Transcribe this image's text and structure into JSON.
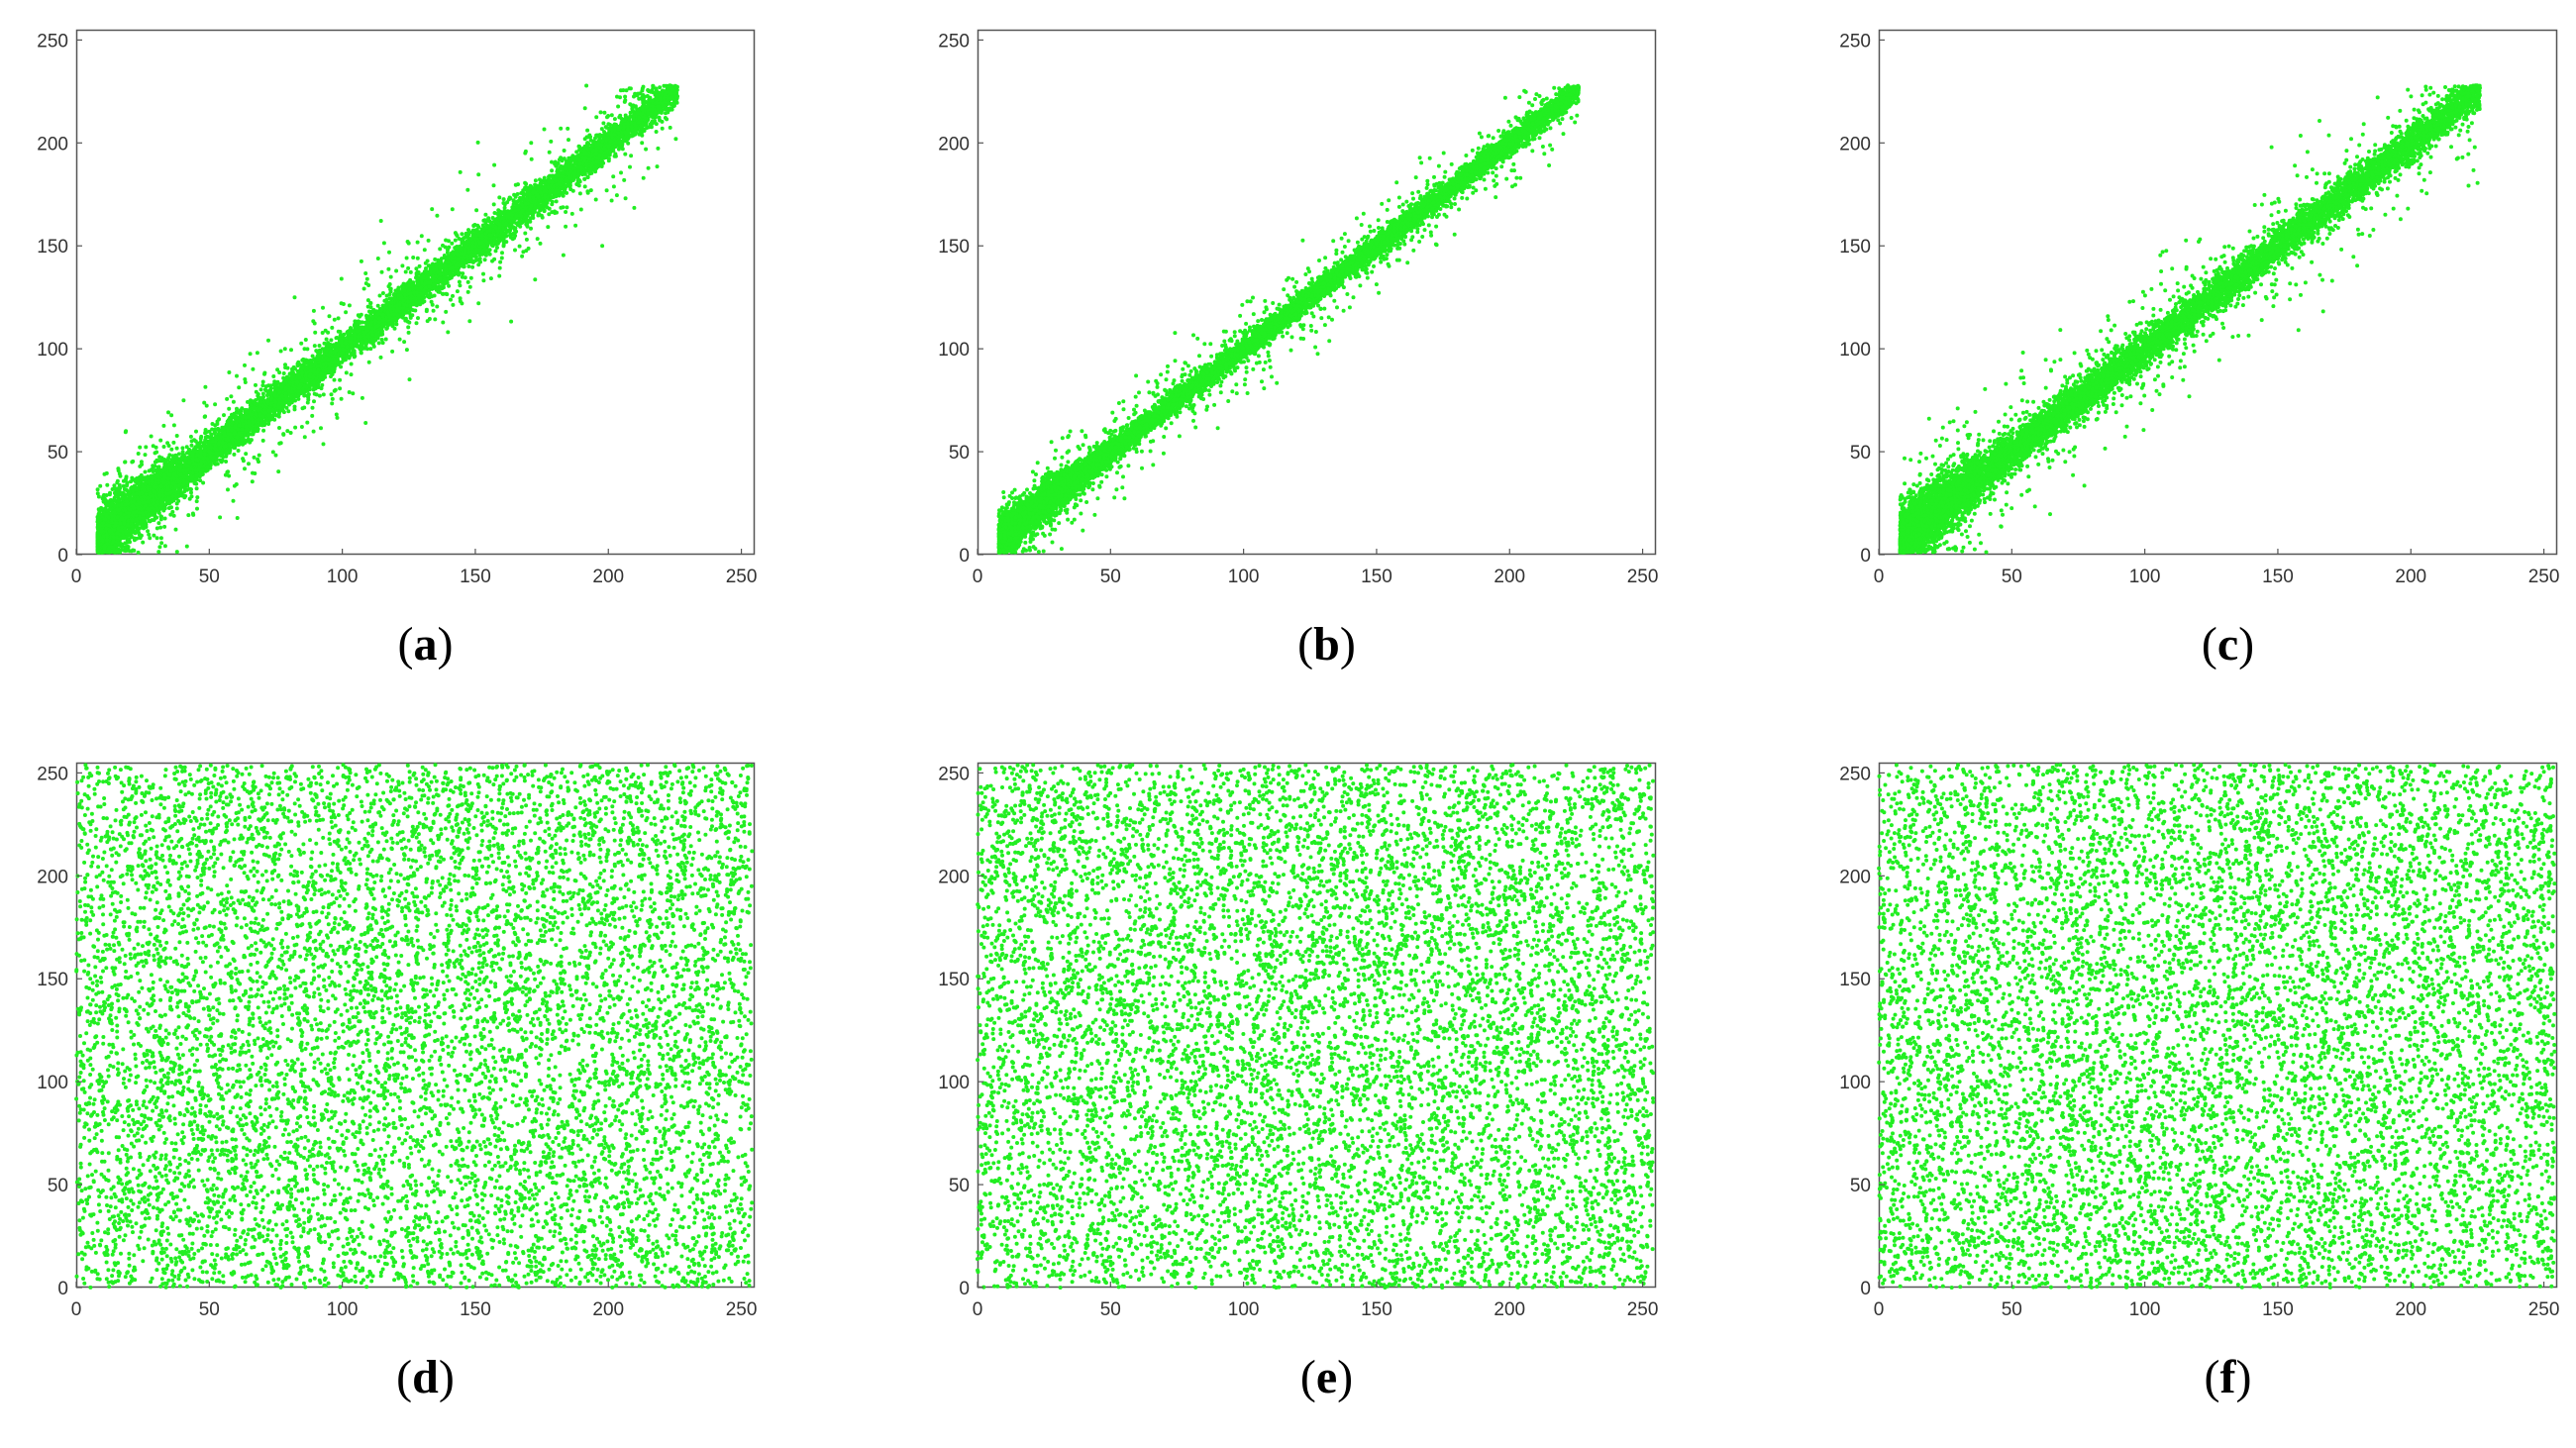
{
  "chart_data": [
    {
      "id": "a",
      "label": "a",
      "type": "scatter",
      "pattern": "correlated",
      "spread": 1.0,
      "color": "#22ee22",
      "xlim": [
        0,
        255
      ],
      "ylim": [
        0,
        255
      ],
      "xticks": [
        "0",
        "50",
        "100",
        "150",
        "200",
        "250"
      ],
      "yticks": [
        "0",
        "50",
        "100",
        "150",
        "200",
        "250"
      ]
    },
    {
      "id": "b",
      "label": "b",
      "type": "scatter",
      "pattern": "correlated",
      "spread": 0.7,
      "color": "#22ee22",
      "xlim": [
        0,
        255
      ],
      "ylim": [
        0,
        255
      ],
      "xticks": [
        "0",
        "50",
        "100",
        "150",
        "200",
        "250"
      ],
      "yticks": [
        "0",
        "50",
        "100",
        "150",
        "200",
        "250"
      ]
    },
    {
      "id": "c",
      "label": "c",
      "type": "scatter",
      "pattern": "correlated",
      "spread": 1.1,
      "color": "#22ee22",
      "xlim": [
        0,
        255
      ],
      "ylim": [
        0,
        255
      ],
      "xticks": [
        "0",
        "50",
        "100",
        "150",
        "200",
        "250"
      ],
      "yticks": [
        "0",
        "50",
        "100",
        "150",
        "200",
        "250"
      ]
    },
    {
      "id": "d",
      "label": "d",
      "type": "scatter",
      "pattern": "uniform",
      "spread": 1.0,
      "color": "#22ee22",
      "xlim": [
        0,
        255
      ],
      "ylim": [
        0,
        255
      ],
      "xticks": [
        "0",
        "50",
        "100",
        "150",
        "200",
        "250"
      ],
      "yticks": [
        "0",
        "50",
        "100",
        "150",
        "200",
        "250"
      ]
    },
    {
      "id": "e",
      "label": "e",
      "type": "scatter",
      "pattern": "uniform",
      "spread": 1.0,
      "color": "#22ee22",
      "xlim": [
        0,
        255
      ],
      "ylim": [
        0,
        255
      ],
      "xticks": [
        "0",
        "50",
        "100",
        "150",
        "200",
        "250"
      ],
      "yticks": [
        "0",
        "50",
        "100",
        "150",
        "200",
        "250"
      ]
    },
    {
      "id": "f",
      "label": "f",
      "type": "scatter",
      "pattern": "uniform",
      "spread": 1.0,
      "color": "#22ee22",
      "xlim": [
        0,
        255
      ],
      "ylim": [
        0,
        255
      ],
      "xticks": [
        "0",
        "50",
        "100",
        "150",
        "200",
        "250"
      ],
      "yticks": [
        "0",
        "50",
        "100",
        "150",
        "200",
        "250"
      ]
    }
  ]
}
